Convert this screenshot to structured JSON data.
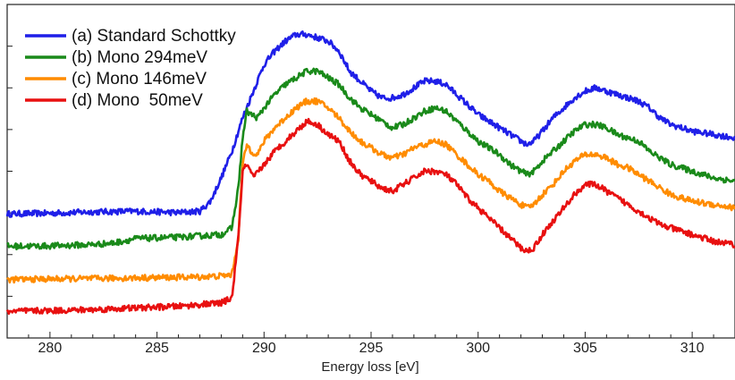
{
  "chart_data": {
    "type": "line",
    "title": "",
    "xlabel": "Energy loss [eV]",
    "ylabel": "",
    "xlim": [
      278,
      312
    ],
    "ylim": [
      0,
      1
    ],
    "y_tick_labels_shown": false,
    "grid": false,
    "legend_position": "top-left",
    "x_ticks": [
      280,
      285,
      290,
      295,
      300,
      305,
      310
    ],
    "x_tick_labels": [
      "280",
      "285",
      "290",
      "295",
      "300",
      "305",
      "310"
    ],
    "series": [
      {
        "name": "(a) Standard Schottky",
        "color": "#1f1fe8",
        "points": [
          [
            278,
            0.372
          ],
          [
            280,
            0.374
          ],
          [
            282,
            0.378
          ],
          [
            284,
            0.38
          ],
          [
            286,
            0.376
          ],
          [
            287,
            0.38
          ],
          [
            287.5,
            0.41
          ],
          [
            288,
            0.48
          ],
          [
            288.5,
            0.56
          ],
          [
            289,
            0.66
          ],
          [
            289.5,
            0.74
          ],
          [
            290,
            0.82
          ],
          [
            290.5,
            0.86
          ],
          [
            291,
            0.89
          ],
          [
            291.5,
            0.91
          ],
          [
            292,
            0.91
          ],
          [
            292.5,
            0.9
          ],
          [
            293,
            0.89
          ],
          [
            293.5,
            0.86
          ],
          [
            294,
            0.8
          ],
          [
            294.5,
            0.77
          ],
          [
            295,
            0.74
          ],
          [
            295.5,
            0.72
          ],
          [
            296,
            0.72
          ],
          [
            296.5,
            0.73
          ],
          [
            297,
            0.75
          ],
          [
            297.5,
            0.77
          ],
          [
            298,
            0.77
          ],
          [
            298.5,
            0.76
          ],
          [
            299,
            0.73
          ],
          [
            299.5,
            0.7
          ],
          [
            300,
            0.67
          ],
          [
            300.5,
            0.65
          ],
          [
            301,
            0.63
          ],
          [
            301.5,
            0.61
          ],
          [
            302,
            0.59
          ],
          [
            302.3,
            0.58
          ],
          [
            302.6,
            0.59
          ],
          [
            303,
            0.62
          ],
          [
            303.5,
            0.66
          ],
          [
            304,
            0.69
          ],
          [
            304.5,
            0.72
          ],
          [
            305,
            0.74
          ],
          [
            305.5,
            0.75
          ],
          [
            306,
            0.74
          ],
          [
            306.5,
            0.73
          ],
          [
            307,
            0.72
          ],
          [
            307.5,
            0.71
          ],
          [
            308,
            0.69
          ],
          [
            308.5,
            0.66
          ],
          [
            309,
            0.64
          ],
          [
            309.5,
            0.63
          ],
          [
            310,
            0.62
          ],
          [
            311,
            0.61
          ],
          [
            312,
            0.6
          ]
        ]
      },
      {
        "name": "(b) Mono 294meV",
        "color": "#1a8a1a",
        "points": [
          [
            278,
            0.275
          ],
          [
            280,
            0.276
          ],
          [
            282,
            0.28
          ],
          [
            283,
            0.285
          ],
          [
            284,
            0.298
          ],
          [
            285,
            0.3
          ],
          [
            286,
            0.302
          ],
          [
            287,
            0.306
          ],
          [
            288,
            0.31
          ],
          [
            288.5,
            0.33
          ],
          [
            288.8,
            0.45
          ],
          [
            289,
            0.6
          ],
          [
            289.2,
            0.68
          ],
          [
            289.4,
            0.67
          ],
          [
            289.7,
            0.66
          ],
          [
            290,
            0.69
          ],
          [
            290.5,
            0.73
          ],
          [
            291,
            0.76
          ],
          [
            291.5,
            0.78
          ],
          [
            292,
            0.8
          ],
          [
            292.5,
            0.8
          ],
          [
            293,
            0.78
          ],
          [
            293.5,
            0.76
          ],
          [
            294,
            0.72
          ],
          [
            294.5,
            0.69
          ],
          [
            295,
            0.67
          ],
          [
            295.5,
            0.65
          ],
          [
            296,
            0.63
          ],
          [
            296.5,
            0.64
          ],
          [
            297,
            0.66
          ],
          [
            297.5,
            0.68
          ],
          [
            298,
            0.69
          ],
          [
            298.5,
            0.68
          ],
          [
            299,
            0.65
          ],
          [
            299.5,
            0.62
          ],
          [
            300,
            0.59
          ],
          [
            300.5,
            0.57
          ],
          [
            301,
            0.55
          ],
          [
            301.5,
            0.52
          ],
          [
            302,
            0.5
          ],
          [
            302.3,
            0.49
          ],
          [
            302.6,
            0.5
          ],
          [
            303,
            0.53
          ],
          [
            303.5,
            0.56
          ],
          [
            304,
            0.59
          ],
          [
            304.5,
            0.62
          ],
          [
            305,
            0.64
          ],
          [
            305.5,
            0.64
          ],
          [
            306,
            0.63
          ],
          [
            306.5,
            0.61
          ],
          [
            307,
            0.6
          ],
          [
            307.5,
            0.59
          ],
          [
            308,
            0.56
          ],
          [
            308.5,
            0.54
          ],
          [
            309,
            0.52
          ],
          [
            309.5,
            0.51
          ],
          [
            310,
            0.5
          ],
          [
            311,
            0.48
          ],
          [
            312,
            0.47
          ]
        ]
      },
      {
        "name": "(c) Mono 146meV",
        "color": "#ff8c00",
        "points": [
          [
            278,
            0.175
          ],
          [
            280,
            0.177
          ],
          [
            282,
            0.178
          ],
          [
            284,
            0.18
          ],
          [
            286,
            0.182
          ],
          [
            287,
            0.183
          ],
          [
            288,
            0.186
          ],
          [
            288.5,
            0.19
          ],
          [
            288.8,
            0.3
          ],
          [
            289,
            0.52
          ],
          [
            289.2,
            0.58
          ],
          [
            289.4,
            0.56
          ],
          [
            289.7,
            0.55
          ],
          [
            290,
            0.59
          ],
          [
            290.5,
            0.63
          ],
          [
            291,
            0.66
          ],
          [
            291.5,
            0.69
          ],
          [
            292,
            0.71
          ],
          [
            292.5,
            0.71
          ],
          [
            293,
            0.69
          ],
          [
            293.5,
            0.66
          ],
          [
            294,
            0.62
          ],
          [
            294.5,
            0.59
          ],
          [
            295,
            0.57
          ],
          [
            295.5,
            0.55
          ],
          [
            296,
            0.54
          ],
          [
            296.5,
            0.55
          ],
          [
            297,
            0.57
          ],
          [
            297.5,
            0.58
          ],
          [
            298,
            0.59
          ],
          [
            298.5,
            0.58
          ],
          [
            299,
            0.55
          ],
          [
            299.5,
            0.52
          ],
          [
            300,
            0.49
          ],
          [
            300.5,
            0.47
          ],
          [
            301,
            0.44
          ],
          [
            301.5,
            0.42
          ],
          [
            302,
            0.4
          ],
          [
            302.3,
            0.39
          ],
          [
            302.6,
            0.4
          ],
          [
            303,
            0.43
          ],
          [
            303.5,
            0.46
          ],
          [
            304,
            0.5
          ],
          [
            304.5,
            0.53
          ],
          [
            305,
            0.55
          ],
          [
            305.5,
            0.55
          ],
          [
            306,
            0.54
          ],
          [
            306.5,
            0.52
          ],
          [
            307,
            0.51
          ],
          [
            307.5,
            0.49
          ],
          [
            308,
            0.47
          ],
          [
            308.5,
            0.45
          ],
          [
            309,
            0.43
          ],
          [
            309.5,
            0.42
          ],
          [
            310,
            0.41
          ],
          [
            311,
            0.4
          ],
          [
            312,
            0.39
          ]
        ]
      },
      {
        "name": "(d) Mono  50meV",
        "color": "#e81010",
        "points": [
          [
            278,
            0.08
          ],
          [
            280,
            0.082
          ],
          [
            282,
            0.085
          ],
          [
            284,
            0.09
          ],
          [
            286,
            0.095
          ],
          [
            287,
            0.1
          ],
          [
            288,
            0.105
          ],
          [
            288.5,
            0.12
          ],
          [
            288.8,
            0.3
          ],
          [
            289,
            0.5
          ],
          [
            289.2,
            0.52
          ],
          [
            289.5,
            0.48
          ],
          [
            290,
            0.52
          ],
          [
            290.5,
            0.56
          ],
          [
            291,
            0.59
          ],
          [
            291.5,
            0.62
          ],
          [
            292,
            0.65
          ],
          [
            292.5,
            0.64
          ],
          [
            293,
            0.61
          ],
          [
            293.5,
            0.59
          ],
          [
            294,
            0.53
          ],
          [
            294.5,
            0.49
          ],
          [
            295,
            0.47
          ],
          [
            295.5,
            0.45
          ],
          [
            296,
            0.44
          ],
          [
            296.5,
            0.46
          ],
          [
            297,
            0.48
          ],
          [
            297.5,
            0.5
          ],
          [
            298,
            0.5
          ],
          [
            298.5,
            0.49
          ],
          [
            299,
            0.46
          ],
          [
            299.5,
            0.42
          ],
          [
            300,
            0.39
          ],
          [
            300.5,
            0.36
          ],
          [
            301,
            0.33
          ],
          [
            301.5,
            0.3
          ],
          [
            302,
            0.27
          ],
          [
            302.3,
            0.26
          ],
          [
            302.6,
            0.27
          ],
          [
            303,
            0.31
          ],
          [
            303.5,
            0.35
          ],
          [
            304,
            0.39
          ],
          [
            304.5,
            0.43
          ],
          [
            305,
            0.46
          ],
          [
            305.5,
            0.46
          ],
          [
            306,
            0.44
          ],
          [
            306.5,
            0.42
          ],
          [
            307,
            0.4
          ],
          [
            307.5,
            0.38
          ],
          [
            308,
            0.36
          ],
          [
            308.5,
            0.34
          ],
          [
            309,
            0.33
          ],
          [
            309.5,
            0.32
          ],
          [
            310,
            0.31
          ],
          [
            311,
            0.29
          ],
          [
            312,
            0.28
          ]
        ]
      }
    ]
  }
}
